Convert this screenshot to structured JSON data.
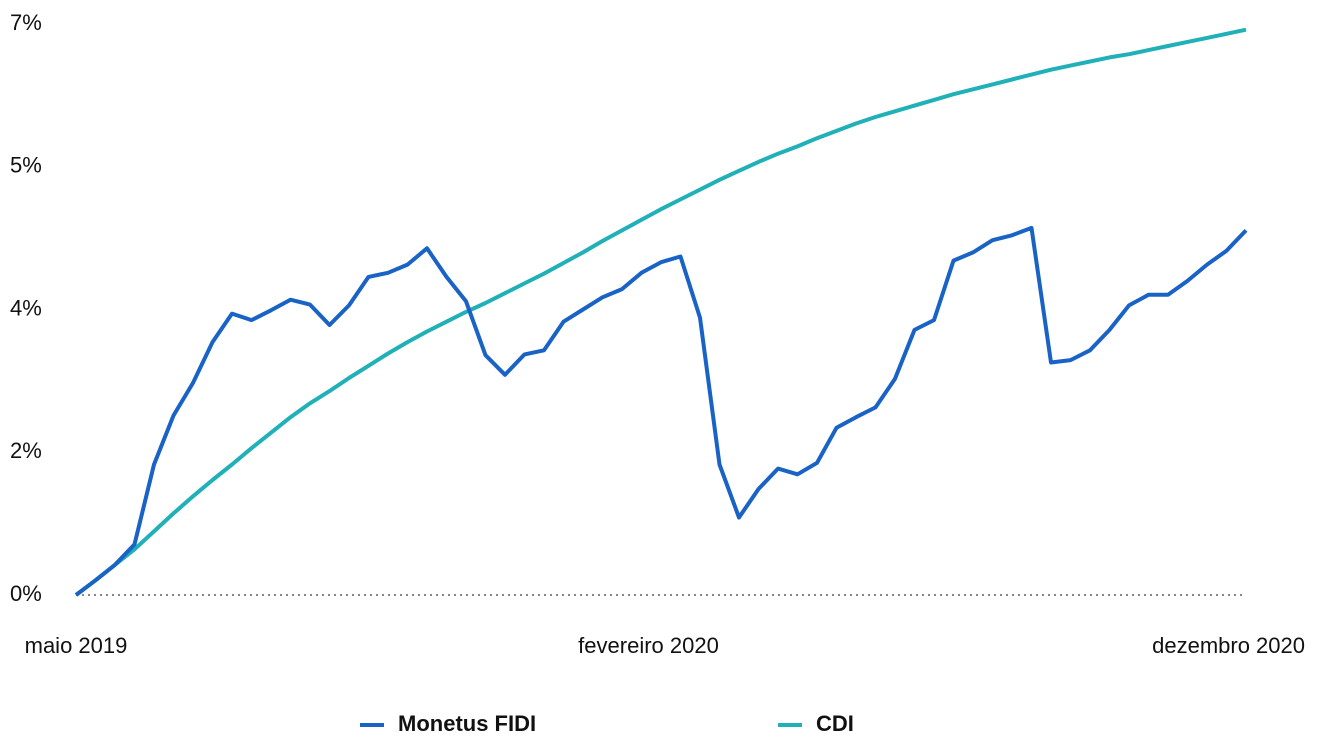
{
  "chart_data": {
    "type": "line",
    "categories": [
      "maio 2019",
      null,
      null,
      null,
      null,
      null,
      null,
      null,
      null,
      null,
      null,
      null,
      null,
      null,
      null,
      null,
      null,
      null,
      null,
      null,
      null,
      null,
      null,
      null,
      null,
      null,
      null,
      null,
      null,
      "fevereiro 2020",
      null,
      null,
      null,
      null,
      null,
      null,
      null,
      null,
      null,
      null,
      null,
      null,
      null,
      null,
      null,
      null,
      null,
      null,
      null,
      null,
      null,
      null,
      null,
      null,
      null,
      null,
      null,
      null,
      null,
      null,
      "dezembro 2020"
    ],
    "series": [
      {
        "name": "Monetus FIDI",
        "color": "#1a63c6",
        "values": [
          0,
          0.18,
          0.37,
          0.62,
          1.6,
          2.2,
          2.6,
          3.1,
          3.45,
          3.37,
          3.49,
          3.62,
          3.56,
          3.31,
          3.55,
          3.9,
          3.95,
          4.05,
          4.25,
          3.9,
          3.6,
          2.94,
          2.7,
          2.95,
          3.0,
          3.35,
          3.5,
          3.65,
          3.75,
          3.95,
          4.08,
          4.15,
          3.4,
          1.6,
          0.95,
          1.3,
          1.55,
          1.48,
          1.62,
          2.05,
          2.18,
          2.3,
          2.65,
          3.25,
          3.37,
          4.1,
          4.2,
          4.35,
          4.41,
          4.5,
          2.85,
          2.88,
          3.0,
          3.25,
          3.55,
          3.68,
          3.68,
          3.85,
          4.05,
          4.22,
          4.47
        ]
      },
      {
        "name": "CDI",
        "color": "#1fb0b8",
        "values": [
          0,
          0.18,
          0.37,
          0.56,
          0.78,
          1.0,
          1.21,
          1.41,
          1.6,
          1.8,
          1.99,
          2.18,
          2.35,
          2.5,
          2.66,
          2.81,
          2.96,
          3.1,
          3.23,
          3.35,
          3.47,
          3.58,
          3.7,
          3.82,
          3.94,
          4.07,
          4.2,
          4.34,
          4.47,
          4.6,
          4.73,
          4.85,
          4.97,
          5.09,
          5.2,
          5.31,
          5.41,
          5.5,
          5.6,
          5.69,
          5.78,
          5.86,
          5.93,
          6.0,
          6.07,
          6.14,
          6.2,
          6.26,
          6.32,
          6.38,
          6.44,
          6.49,
          6.54,
          6.59,
          6.63,
          6.68,
          6.73,
          6.78,
          6.83,
          6.88,
          6.93
        ]
      }
    ],
    "ylim": [
      0,
      7
    ],
    "yticks": [
      {
        "value": 0,
        "label": "0%"
      },
      {
        "value": 1.75,
        "label": "2%"
      },
      {
        "value": 3.5,
        "label": "4%"
      },
      {
        "value": 5.25,
        "label": "5%"
      },
      {
        "value": 7,
        "label": "7%"
      }
    ],
    "grid": false
  }
}
